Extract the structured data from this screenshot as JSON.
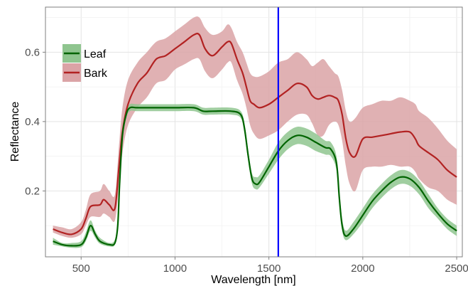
{
  "chart_data": {
    "type": "line",
    "title": "",
    "xlabel": "Wavelength [nm]",
    "ylabel": "Reflectance",
    "xlim": [
      310,
      2530
    ],
    "ylim": [
      0.01,
      0.73
    ],
    "x_ticks": [
      500,
      1000,
      1500,
      2000,
      2500
    ],
    "x_tick_labels": [
      "500",
      "1000",
      "1500",
      "2000",
      "2500"
    ],
    "y_ticks": [
      0.2,
      0.4,
      0.6
    ],
    "y_tick_labels": [
      "0.2",
      "0.4",
      "0.6"
    ],
    "grid": true,
    "legend_position": "top-left",
    "vertical_line": {
      "x": 1550,
      "color": "#0000ff"
    },
    "series": [
      {
        "name": "Leaf",
        "line_color": "#006400",
        "band_color": "#8fc58f",
        "x": [
          350,
          400,
          450,
          500,
          525,
          550,
          575,
          600,
          650,
          680,
          695,
          705,
          720,
          740,
          760,
          800,
          900,
          1000,
          1100,
          1150,
          1200,
          1300,
          1350,
          1370,
          1390,
          1410,
          1430,
          1450,
          1500,
          1550,
          1600,
          1650,
          1700,
          1750,
          1800,
          1830,
          1860,
          1875,
          1890,
          1910,
          1950,
          2000,
          2050,
          2100,
          2150,
          2200,
          2250,
          2300,
          2350,
          2400,
          2450,
          2500
        ],
        "mean": [
          0.055,
          0.045,
          0.042,
          0.045,
          0.065,
          0.1,
          0.075,
          0.055,
          0.045,
          0.05,
          0.1,
          0.22,
          0.36,
          0.42,
          0.44,
          0.44,
          0.44,
          0.44,
          0.44,
          0.43,
          0.43,
          0.43,
          0.42,
          0.38,
          0.3,
          0.235,
          0.22,
          0.225,
          0.27,
          0.315,
          0.345,
          0.36,
          0.355,
          0.34,
          0.325,
          0.32,
          0.28,
          0.18,
          0.1,
          0.07,
          0.09,
          0.13,
          0.17,
          0.2,
          0.225,
          0.24,
          0.235,
          0.21,
          0.17,
          0.135,
          0.105,
          0.085
        ],
        "upper": [
          0.065,
          0.05,
          0.05,
          0.055,
          0.08,
          0.115,
          0.085,
          0.065,
          0.05,
          0.06,
          0.115,
          0.235,
          0.37,
          0.43,
          0.45,
          0.45,
          0.45,
          0.45,
          0.45,
          0.44,
          0.44,
          0.44,
          0.43,
          0.395,
          0.315,
          0.25,
          0.24,
          0.245,
          0.29,
          0.34,
          0.37,
          0.385,
          0.38,
          0.365,
          0.345,
          0.34,
          0.3,
          0.2,
          0.12,
          0.085,
          0.11,
          0.15,
          0.19,
          0.22,
          0.245,
          0.26,
          0.255,
          0.23,
          0.19,
          0.15,
          0.12,
          0.1
        ],
        "lower": [
          0.045,
          0.04,
          0.036,
          0.038,
          0.055,
          0.085,
          0.065,
          0.048,
          0.04,
          0.045,
          0.09,
          0.205,
          0.35,
          0.41,
          0.43,
          0.43,
          0.43,
          0.43,
          0.43,
          0.42,
          0.42,
          0.42,
          0.41,
          0.365,
          0.285,
          0.22,
          0.205,
          0.21,
          0.25,
          0.29,
          0.32,
          0.335,
          0.33,
          0.315,
          0.305,
          0.3,
          0.26,
          0.16,
          0.085,
          0.058,
          0.075,
          0.11,
          0.15,
          0.18,
          0.205,
          0.22,
          0.215,
          0.19,
          0.15,
          0.12,
          0.09,
          0.07
        ]
      },
      {
        "name": "Bark",
        "line_color": "#b22222",
        "band_color": "#dba3a6",
        "x": [
          350,
          400,
          450,
          500,
          525,
          550,
          600,
          620,
          650,
          680,
          700,
          720,
          750,
          800,
          850,
          900,
          950,
          1000,
          1050,
          1100,
          1130,
          1160,
          1200,
          1250,
          1280,
          1300,
          1330,
          1360,
          1380,
          1400,
          1420,
          1450,
          1500,
          1550,
          1600,
          1650,
          1700,
          1730,
          1760,
          1790,
          1820,
          1850,
          1870,
          1890,
          1910,
          1930,
          1960,
          2000,
          2050,
          2100,
          2150,
          2200,
          2250,
          2280,
          2300,
          2350,
          2400,
          2450,
          2500
        ],
        "mean": [
          0.09,
          0.08,
          0.075,
          0.09,
          0.12,
          0.155,
          0.16,
          0.175,
          0.16,
          0.15,
          0.26,
          0.37,
          0.45,
          0.51,
          0.54,
          0.58,
          0.59,
          0.61,
          0.63,
          0.65,
          0.65,
          0.61,
          0.59,
          0.615,
          0.63,
          0.625,
          0.58,
          0.54,
          0.5,
          0.46,
          0.45,
          0.44,
          0.45,
          0.47,
          0.49,
          0.51,
          0.5,
          0.475,
          0.465,
          0.47,
          0.475,
          0.47,
          0.46,
          0.42,
          0.35,
          0.31,
          0.3,
          0.35,
          0.355,
          0.36,
          0.365,
          0.37,
          0.37,
          0.35,
          0.33,
          0.31,
          0.29,
          0.26,
          0.24
        ],
        "upper": [
          0.1,
          0.095,
          0.09,
          0.11,
          0.145,
          0.19,
          0.2,
          0.22,
          0.2,
          0.19,
          0.32,
          0.44,
          0.52,
          0.57,
          0.6,
          0.63,
          0.64,
          0.66,
          0.68,
          0.7,
          0.7,
          0.67,
          0.65,
          0.66,
          0.68,
          0.67,
          0.63,
          0.6,
          0.57,
          0.54,
          0.53,
          0.53,
          0.545,
          0.57,
          0.58,
          0.6,
          0.58,
          0.56,
          0.57,
          0.58,
          0.56,
          0.54,
          0.53,
          0.49,
          0.43,
          0.4,
          0.41,
          0.44,
          0.45,
          0.46,
          0.46,
          0.47,
          0.46,
          0.45,
          0.43,
          0.41,
          0.38,
          0.345,
          0.32
        ],
        "lower": [
          0.08,
          0.07,
          0.065,
          0.075,
          0.1,
          0.125,
          0.125,
          0.135,
          0.125,
          0.115,
          0.205,
          0.31,
          0.39,
          0.44,
          0.47,
          0.51,
          0.52,
          0.55,
          0.565,
          0.58,
          0.58,
          0.545,
          0.525,
          0.55,
          0.57,
          0.57,
          0.52,
          0.48,
          0.44,
          0.39,
          0.365,
          0.35,
          0.36,
          0.375,
          0.4,
          0.42,
          0.42,
          0.395,
          0.36,
          0.36,
          0.39,
          0.4,
          0.39,
          0.345,
          0.27,
          0.22,
          0.2,
          0.26,
          0.27,
          0.27,
          0.275,
          0.27,
          0.27,
          0.255,
          0.235,
          0.21,
          0.2,
          0.175,
          0.16
        ]
      }
    ]
  }
}
